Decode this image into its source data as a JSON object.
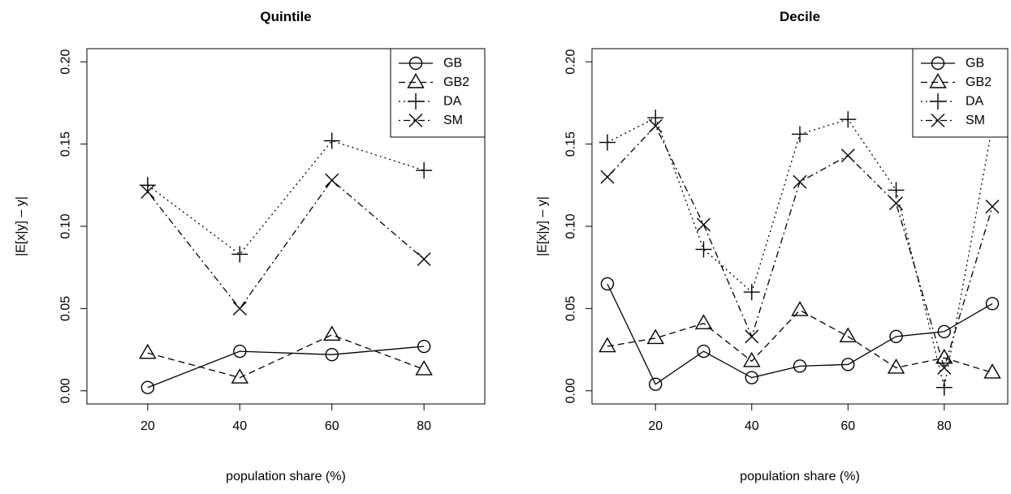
{
  "chart_data": [
    {
      "type": "line",
      "title": "Quintile",
      "xlabel": "population share (%)",
      "ylabel": "|E[x|y] – y|",
      "xlim": [
        10,
        90
      ],
      "ylim": [
        0,
        0.2
      ],
      "x_ticks": [
        "20",
        "40",
        "60",
        "80"
      ],
      "y_ticks": [
        "0.00",
        "0.05",
        "0.10",
        "0.15",
        "0.20"
      ],
      "grid": false,
      "legend_position": "top-right",
      "x": [
        20,
        40,
        60,
        80
      ],
      "series": [
        {
          "name": "GB",
          "line": "solid",
          "marker": "circle",
          "values": [
            0.002,
            0.024,
            0.022,
            0.027
          ]
        },
        {
          "name": "GB2",
          "line": "dashed",
          "marker": "triangle",
          "values": [
            0.023,
            0.008,
            0.034,
            0.013
          ]
        },
        {
          "name": "DA",
          "line": "dotted",
          "marker": "plus",
          "values": [
            0.125,
            0.083,
            0.152,
            0.134
          ]
        },
        {
          "name": "SM",
          "line": "dash-dot",
          "marker": "cross",
          "values": [
            0.121,
            0.05,
            0.128,
            0.08
          ]
        }
      ]
    },
    {
      "type": "line",
      "title": "Decile",
      "xlabel": "population share (%)",
      "ylabel": "|E[x|y] – y|",
      "xlim": [
        10,
        90
      ],
      "ylim": [
        0,
        0.2
      ],
      "x_ticks": [
        "20",
        "40",
        "60",
        "80"
      ],
      "y_ticks": [
        "0.00",
        "0.05",
        "0.10",
        "0.15",
        "0.20"
      ],
      "grid": false,
      "legend_position": "top-right",
      "x": [
        10,
        20,
        30,
        40,
        50,
        60,
        70,
        80,
        90
      ],
      "series": [
        {
          "name": "GB",
          "line": "solid",
          "marker": "circle",
          "values": [
            0.065,
            0.004,
            0.024,
            0.008,
            0.015,
            0.016,
            0.033,
            0.036,
            0.053
          ]
        },
        {
          "name": "GB2",
          "line": "dashed",
          "marker": "triangle",
          "values": [
            0.027,
            0.032,
            0.041,
            0.018,
            0.049,
            0.033,
            0.014,
            0.02,
            0.011
          ]
        },
        {
          "name": "DA",
          "line": "dotted",
          "marker": "plus",
          "values": [
            0.151,
            0.166,
            0.086,
            0.06,
            0.156,
            0.165,
            0.122,
            0.002,
            0.161
          ]
        },
        {
          "name": "SM",
          "line": "dash-dot",
          "marker": "cross",
          "values": [
            0.13,
            0.161,
            0.101,
            0.033,
            0.127,
            0.143,
            0.114,
            0.014,
            0.112
          ]
        }
      ]
    }
  ]
}
